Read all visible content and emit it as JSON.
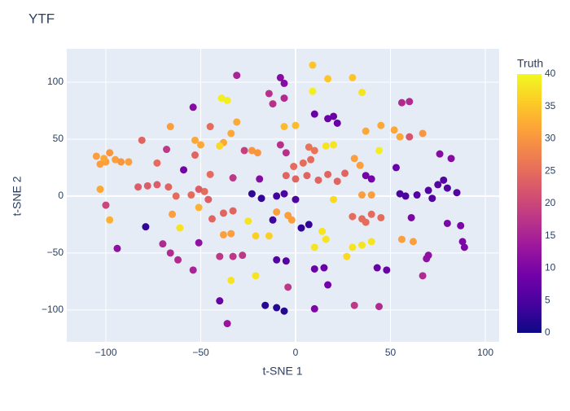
{
  "chart_data": {
    "type": "scatter",
    "title": "YTF",
    "x_label": "t-SNE 1",
    "y_label": "t-SNE 2",
    "xlim": [
      -120.6,
      107.3
    ],
    "ylim": [
      -128,
      129.3
    ],
    "xticks": [
      {
        "value": -100,
        "label": "−100"
      },
      {
        "value": -50,
        "label": "−50"
      },
      0,
      50,
      100
    ],
    "yticks": [
      {
        "value": -100,
        "label": "−100"
      },
      {
        "value": -50,
        "label": "−50"
      },
      0,
      50,
      100
    ],
    "grid": true,
    "x": [
      -105,
      -100,
      -98,
      -95,
      -103,
      -92,
      -88,
      -101,
      -103,
      -98,
      -94,
      -100,
      -81,
      -73,
      -83,
      -78,
      -73,
      -79,
      -66,
      -68,
      -59,
      -67,
      -63,
      -55,
      -48,
      -65,
      -61,
      -70,
      -66,
      -62,
      -54,
      -54,
      -53,
      -50,
      -45,
      -53,
      -45,
      -51,
      -46,
      -51,
      -51,
      -39,
      -36,
      -31,
      -34,
      -38,
      -40,
      -33,
      -38,
      -33,
      -44,
      -38,
      -34,
      -40,
      -33,
      -28,
      -34,
      -40,
      -36,
      -31,
      -23,
      -20,
      -27,
      -19,
      -23,
      -18,
      -25,
      -21,
      -14,
      -21,
      -16,
      -10,
      -6,
      -14,
      -12,
      -8,
      -6,
      -6,
      -8,
      -5,
      -6,
      0,
      -1,
      4,
      8,
      -5,
      0,
      6,
      12,
      17,
      22,
      26,
      -6,
      -10,
      0,
      -10,
      -4,
      -2,
      -12,
      3,
      7,
      -10,
      -5,
      -4,
      7,
      10,
      16,
      20,
      10,
      17,
      20,
      22,
      20,
      14,
      16,
      10,
      10,
      15,
      17,
      10,
      9,
      17,
      30,
      35,
      37,
      45,
      52,
      55,
      31,
      34,
      44,
      37,
      40,
      35,
      40,
      30,
      35,
      40,
      45,
      37,
      30,
      35,
      40,
      27,
      43,
      48,
      31,
      44,
      56,
      62,
      53,
      56,
      60,
      67,
      76,
      82,
      64,
      70,
      75,
      80,
      85,
      72,
      78,
      55,
      58,
      61,
      70,
      69,
      67,
      80,
      87,
      88,
      89,
      60,
      9
    ],
    "y": [
      35,
      30,
      38,
      32,
      28,
      30,
      30,
      33,
      6,
      -21,
      -46,
      -8,
      49,
      29,
      8,
      9,
      10,
      -27,
      61,
      41,
      23,
      8,
      0,
      1,
      4,
      -16,
      -28,
      -42,
      -50,
      -56,
      -65,
      78,
      49,
      45,
      61,
      36,
      19,
      6,
      -3,
      -10,
      -41,
      86,
      84,
      65,
      55,
      47,
      44,
      16,
      -15,
      -13,
      -20,
      -34,
      -33,
      -53,
      -53,
      -52,
      -74,
      -92,
      -112,
      106,
      40,
      38,
      40,
      15,
      2,
      -2,
      -22,
      -35,
      -35,
      -70,
      -96,
      -98,
      -101,
      90,
      81,
      104,
      99,
      86,
      45,
      38,
      61,
      62,
      26,
      29,
      32,
      18,
      15,
      18,
      14,
      19,
      13,
      20,
      2,
      0,
      -3,
      -14,
      -17,
      -21,
      -21,
      -28,
      -25,
      -56,
      -57,
      -80,
      43,
      40,
      44,
      45,
      72,
      68,
      70,
      64,
      -3,
      -31,
      -38,
      -45,
      -64,
      -63,
      -78,
      -99,
      115,
      103,
      104,
      91,
      57,
      62,
      58,
      52,
      33,
      27,
      40,
      18,
      15,
      1,
      1,
      -18,
      -20,
      -16,
      -19,
      -23,
      -45,
      -43,
      -40,
      -53,
      -63,
      -65,
      -96,
      -97,
      -38,
      -40,
      25,
      82,
      83,
      55,
      37,
      33,
      1,
      5,
      10,
      7,
      3,
      -2,
      14,
      2,
      0,
      -19,
      -52,
      -55,
      -70,
      -24,
      -26,
      -40,
      -45,
      52,
      92
    ],
    "color_values": [
      31,
      31,
      30,
      31,
      31,
      30,
      31,
      32,
      32,
      33,
      12,
      20,
      24,
      25,
      23,
      23,
      23,
      3,
      31,
      18,
      9,
      24,
      25,
      25,
      25,
      31,
      38,
      16,
      16,
      16,
      15,
      11,
      32,
      32,
      25,
      24,
      25,
      23,
      23,
      33,
      12,
      39,
      39,
      32,
      32,
      32,
      37,
      18,
      24,
      24,
      24,
      31,
      31,
      18,
      18,
      18,
      38,
      8,
      13,
      15,
      30,
      30,
      19,
      11,
      3,
      3,
      38,
      36,
      36,
      38,
      2,
      2,
      2,
      17,
      17,
      11,
      11,
      16,
      17,
      17,
      34,
      34,
      25,
      25,
      25,
      24,
      24,
      24,
      24,
      24,
      24,
      24,
      5,
      4,
      5,
      31,
      31,
      31,
      4,
      3,
      3,
      6,
      6,
      18,
      26,
      26,
      38,
      38,
      8,
      8,
      8,
      8,
      37,
      38,
      38,
      38,
      8,
      8,
      9,
      10,
      35,
      35,
      35,
      38,
      32,
      32,
      32,
      32,
      31,
      31,
      39,
      9,
      9,
      31,
      31,
      25,
      25,
      25,
      25,
      25,
      38,
      38,
      38,
      37,
      8,
      8,
      18,
      16,
      31,
      31,
      8,
      16,
      16,
      30,
      11,
      11,
      6,
      6,
      6,
      6,
      6,
      6,
      6,
      5,
      5,
      10,
      12,
      12,
      16,
      10,
      10,
      10,
      10,
      22,
      39
    ],
    "colorbar": {
      "title": "Truth",
      "range": [
        0,
        40
      ],
      "ticks": [
        0,
        5,
        10,
        15,
        20,
        25,
        30,
        35,
        40
      ],
      "colorscale": [
        "#0d0887",
        "#46039f",
        "#7201a8",
        "#9c179e",
        "#bd3786",
        "#d8576b",
        "#ed7953",
        "#fb9f3a",
        "#fdca26",
        "#f0f921"
      ]
    }
  }
}
